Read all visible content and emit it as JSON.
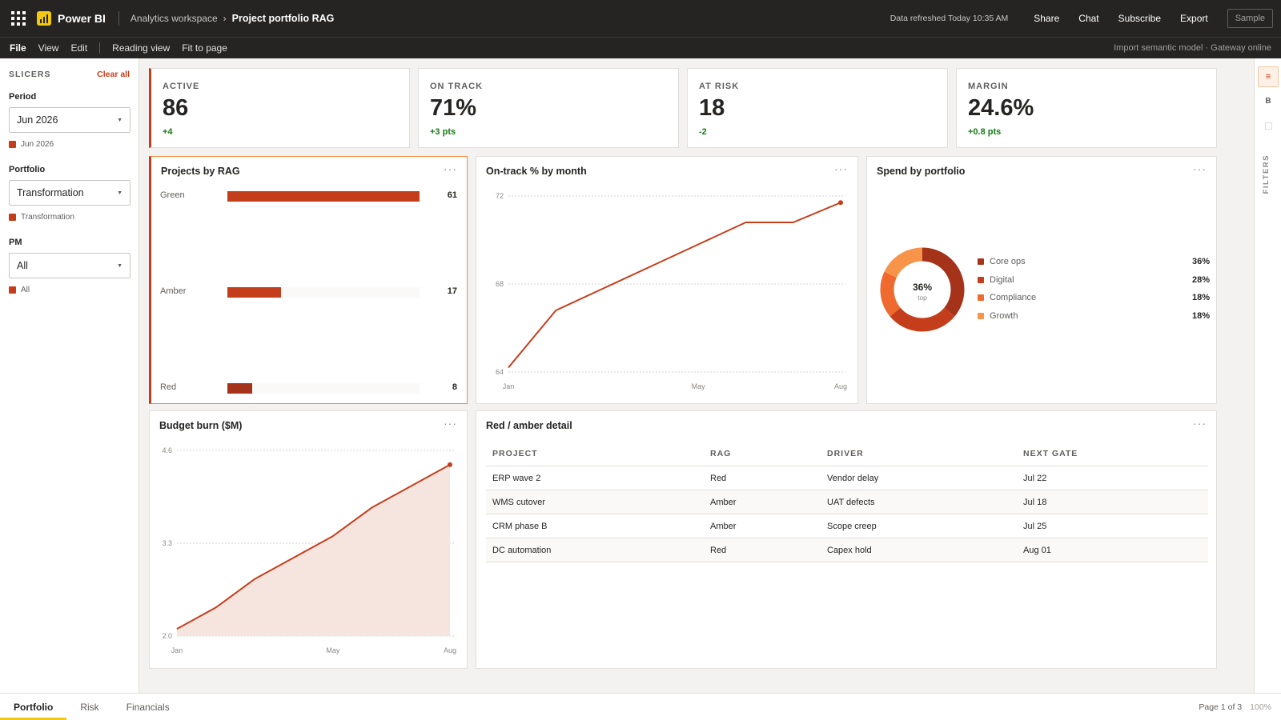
{
  "header": {
    "app_name": "Power BI",
    "breadcrumb": [
      "Analytics workspace",
      "Project portfolio RAG"
    ],
    "refresh_text": "Data refreshed Today 10:35 AM",
    "actions": [
      "Share",
      "Chat",
      "Subscribe",
      "Export"
    ],
    "sample_label": "Sample"
  },
  "menubar": {
    "items": [
      "File",
      "View",
      "Edit"
    ],
    "items2": [
      "Reading view",
      "Fit to page"
    ],
    "status": "Import semantic model · Gateway online"
  },
  "slicers": {
    "title": "SLICERS",
    "clear_label": "Clear all",
    "groups": [
      {
        "label": "Period",
        "value": "Jun 2026",
        "chip": "Jun 2026"
      },
      {
        "label": "Portfolio",
        "value": "Transformation",
        "chip": "Transformation"
      },
      {
        "label": "PM",
        "value": "All",
        "chip": "All"
      }
    ]
  },
  "kpis": [
    {
      "label": "ACTIVE",
      "value": "86",
      "delta": "+4"
    },
    {
      "label": "ON TRACK",
      "value": "71%",
      "delta": "+3 pts"
    },
    {
      "label": "AT RISK",
      "value": "18",
      "delta": "-2"
    },
    {
      "label": "MARGIN",
      "value": "24.6%",
      "delta": "+0.8 pts"
    }
  ],
  "visuals": {
    "rag_title": "Projects by RAG",
    "ontrack_title": "On-track % by month",
    "spend_title": "Spend by portfolio",
    "budget_title": "Budget burn ($M)",
    "detail_title": "Red / amber detail",
    "more": "···"
  },
  "chart_data": [
    {
      "type": "bar",
      "title": "Projects by RAG",
      "categories": [
        "Green",
        "Amber",
        "Red"
      ],
      "values": [
        61,
        17,
        8
      ],
      "xlim": [
        0,
        61
      ],
      "colors": [
        "#c43e1c",
        "#c43e1c",
        "#a4331a"
      ]
    },
    {
      "type": "line",
      "title": "On-track % by month",
      "x": [
        "Jan",
        "Feb",
        "Mar",
        "Apr",
        "May",
        "Jun",
        "Jul",
        "Aug"
      ],
      "values": [
        64.2,
        66.8,
        67.8,
        68.8,
        69.8,
        70.8,
        70.8,
        71.7
      ],
      "yticks": [
        "72",
        "68",
        "64"
      ],
      "ylim": [
        64,
        72
      ],
      "xtick_labels": [
        "Jan",
        "May",
        "Aug"
      ],
      "grid": true,
      "color": "#c43e1c"
    },
    {
      "type": "pie",
      "title": "Spend by portfolio",
      "categories": [
        "Core ops",
        "Digital",
        "Compliance",
        "Growth"
      ],
      "values": [
        36,
        28,
        18,
        18
      ],
      "labels": [
        "36%",
        "28%",
        "18%",
        "18%"
      ],
      "center_value": "36%",
      "center_caption": "top",
      "colors": [
        "#a4331a",
        "#c43e1c",
        "#ee6a2f",
        "#f7944a"
      ]
    },
    {
      "type": "area",
      "title": "Budget burn ($M)",
      "x": [
        "Jan",
        "Feb",
        "Mar",
        "Apr",
        "May",
        "Jun",
        "Jul",
        "Aug"
      ],
      "values": [
        2.1,
        2.4,
        2.8,
        3.1,
        3.4,
        3.8,
        4.1,
        4.4
      ],
      "yticks": [
        "4.6",
        "3.3",
        "2.0"
      ],
      "ylim": [
        2.0,
        4.6
      ],
      "xtick_labels": [
        "Jan",
        "May",
        "Aug"
      ],
      "grid": true,
      "color": "#c43e1c",
      "fill": "#f6e4de"
    }
  ],
  "table": {
    "columns": [
      "PROJECT",
      "RAG",
      "DRIVER",
      "NEXT GATE"
    ],
    "rows": [
      [
        "ERP wave 2",
        "Red",
        "Vendor delay",
        "Jul 22"
      ],
      [
        "WMS cutover",
        "Amber",
        "UAT defects",
        "Jul 18"
      ],
      [
        "CRM phase B",
        "Amber",
        "Scope creep",
        "Jul 25"
      ],
      [
        "DC automation",
        "Red",
        "Capex hold",
        "Aug 01"
      ]
    ]
  },
  "rail": {
    "b_label": "B",
    "filters_label": "FILTERS",
    "icon": "≡"
  },
  "tabs": {
    "items": [
      "Portfolio",
      "Risk",
      "Financials"
    ],
    "page_info": "Page 1 of 3",
    "zoom": "100%"
  }
}
